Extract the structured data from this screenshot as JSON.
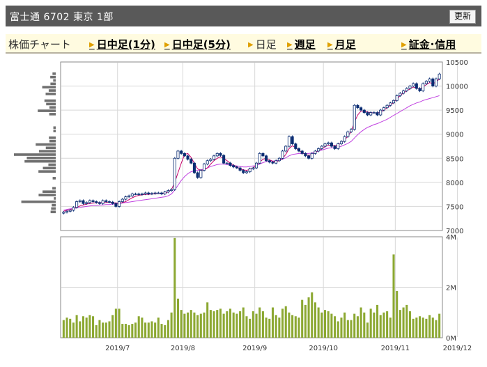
{
  "header": {
    "title": "富士通 6702 東京 1部",
    "refresh_label": "更新"
  },
  "tabs": [
    {
      "label": "株価チャート",
      "link": false
    },
    {
      "label": "日中足(1分)",
      "link": true
    },
    {
      "label": "日中足(5分)",
      "link": true
    },
    {
      "label": "日足",
      "link": false
    },
    {
      "label": "週足",
      "link": true
    },
    {
      "label": "月足",
      "link": true
    },
    {
      "label": "証金･信用",
      "link": true
    }
  ],
  "colors": {
    "up": "#ffffff",
    "down": "#0b2d73",
    "ma_short": "#c8006a",
    "ma_long": "#c040e0",
    "volume": "#8ca832",
    "profile": "#707070"
  },
  "chart_data": [
    {
      "type": "candlestick",
      "ylim": [
        7000,
        10500
      ],
      "yticks": [
        "10500",
        "10000",
        "9500",
        "9000",
        "8500",
        "8000",
        "7500",
        "7000"
      ],
      "xticks": [
        "2019/7",
        "2019/8",
        "2019/9",
        "2019/10",
        "2019/11",
        "2019/12"
      ],
      "close": [
        7380,
        7400,
        7420,
        7480,
        7600,
        7620,
        7560,
        7580,
        7620,
        7600,
        7580,
        7560,
        7620,
        7600,
        7590,
        7560,
        7500,
        7600,
        7650,
        7700,
        7720,
        7760,
        7760,
        7750,
        7760,
        7780,
        7760,
        7770,
        7780,
        7780,
        7760,
        7800,
        7830,
        7850,
        8500,
        8650,
        8600,
        8550,
        8480,
        8400,
        8200,
        8100,
        8250,
        8380,
        8450,
        8480,
        8550,
        8600,
        8560,
        8400,
        8400,
        8350,
        8320,
        8300,
        8250,
        8200,
        8220,
        8280,
        8300,
        8400,
        8600,
        8550,
        8450,
        8420,
        8400,
        8450,
        8500,
        8650,
        8750,
        8950,
        8800,
        8700,
        8650,
        8600,
        8550,
        8500,
        8600,
        8650,
        8700,
        8750,
        8800,
        8820,
        8750,
        8700,
        8800,
        8850,
        8950,
        9050,
        9100,
        9600,
        9550,
        9500,
        9450,
        9400,
        9450,
        9450,
        9400,
        9500,
        9550,
        9600,
        9650,
        9700,
        9800,
        9850,
        9900,
        9950,
        10000,
        10050,
        9950,
        9900,
        10050,
        10100,
        10150,
        10000,
        10150,
        10250
      ]
    },
    {
      "type": "line",
      "name": "MA short",
      "values": [
        7400,
        7420,
        7430,
        7450,
        7480,
        7510,
        7530,
        7550,
        7560,
        7570,
        7580,
        7580,
        7580,
        7580,
        7590,
        7580,
        7570,
        7570,
        7580,
        7600,
        7640,
        7680,
        7710,
        7730,
        7740,
        7750,
        7750,
        7760,
        7760,
        7770,
        7770,
        7780,
        7800,
        7850,
        8000,
        8200,
        8400,
        8580,
        8600,
        8520,
        8400,
        8280,
        8250,
        8260,
        8300,
        8380,
        8450,
        8500,
        8530,
        8500,
        8450,
        8400,
        8360,
        8320,
        8280,
        8260,
        8250,
        8270,
        8300,
        8350,
        8420,
        8480,
        8500,
        8470,
        8440,
        8430,
        8450,
        8500,
        8580,
        8700,
        8760,
        8720,
        8660,
        8620,
        8580,
        8560,
        8580,
        8620,
        8660,
        8700,
        8740,
        8770,
        8770,
        8760,
        8780,
        8820,
        8880,
        8960,
        9050,
        9250,
        9400,
        9480,
        9480,
        9460,
        9450,
        9440,
        9440,
        9460,
        9500,
        9550,
        9600,
        9660,
        9740,
        9800,
        9860,
        9900,
        9940,
        9980,
        9960,
        9940,
        9980,
        10030,
        10070,
        10050,
        10080,
        10150
      ]
    },
    {
      "type": "line",
      "name": "MA long",
      "values": [
        7420,
        7440,
        7450,
        7460,
        7470,
        7480,
        7490,
        7500,
        7510,
        7520,
        7520,
        7530,
        7530,
        7540,
        7540,
        7550,
        7550,
        7560,
        7570,
        7580,
        7590,
        7600,
        7610,
        7620,
        7630,
        7640,
        7650,
        7660,
        7670,
        7680,
        7690,
        7700,
        7720,
        7760,
        7840,
        7940,
        8040,
        8120,
        8180,
        8220,
        8240,
        8250,
        8260,
        8280,
        8300,
        8330,
        8350,
        8370,
        8380,
        8380,
        8370,
        8360,
        8350,
        8340,
        8330,
        8320,
        8320,
        8330,
        8340,
        8350,
        8380,
        8410,
        8430,
        8440,
        8440,
        8450,
        8460,
        8480,
        8510,
        8550,
        8580,
        8590,
        8600,
        8600,
        8600,
        8600,
        8610,
        8630,
        8650,
        8670,
        8690,
        8710,
        8720,
        8720,
        8730,
        8750,
        8780,
        8810,
        8850,
        8920,
        8990,
        9050,
        9100,
        9140,
        9170,
        9200,
        9220,
        9250,
        9280,
        9310,
        9350,
        9390,
        9430,
        9470,
        9510,
        9550,
        9590,
        9620,
        9650,
        9670,
        9700,
        9720,
        9740,
        9760,
        9780,
        9800
      ]
    },
    {
      "type": "bar",
      "name": "出来高",
      "yticks": [
        "4M",
        "2M",
        "0M"
      ],
      "ylim": [
        0,
        4
      ],
      "values": [
        0.7,
        0.8,
        0.75,
        0.6,
        0.9,
        0.65,
        0.85,
        0.8,
        0.9,
        0.85,
        0.5,
        0.7,
        0.6,
        0.6,
        0.65,
        0.9,
        1.15,
        1.15,
        0.55,
        0.55,
        0.5,
        0.55,
        0.6,
        0.85,
        0.8,
        0.6,
        0.6,
        0.65,
        0.6,
        0.8,
        0.55,
        0.5,
        0.7,
        1.0,
        3.95,
        1.55,
        1.1,
        0.95,
        1.0,
        1.1,
        1.0,
        0.9,
        0.95,
        1.0,
        1.4,
        1.1,
        1.05,
        1.1,
        1.15,
        0.95,
        1.05,
        1.15,
        1.0,
        0.95,
        1.05,
        1.2,
        0.85,
        0.75,
        1.05,
        0.95,
        1.2,
        1.05,
        0.8,
        0.75,
        1.2,
        0.9,
        0.8,
        1.15,
        1.25,
        1.0,
        0.9,
        0.85,
        0.8,
        1.5,
        1.3,
        1.6,
        1.8,
        1.4,
        1.2,
        1.0,
        1.1,
        1.05,
        0.95,
        0.85,
        0.65,
        0.8,
        1.0,
        0.7,
        0.7,
        0.95,
        0.85,
        1.2,
        1.0,
        0.6,
        1.15,
        1.0,
        1.3,
        0.9,
        1.0,
        1.05,
        0.8,
        3.3,
        1.85,
        1.1,
        1.2,
        1.3,
        1.05,
        0.75,
        0.8,
        0.85,
        0.8,
        0.75,
        0.9,
        0.8,
        0.7,
        0.95
      ]
    }
  ]
}
